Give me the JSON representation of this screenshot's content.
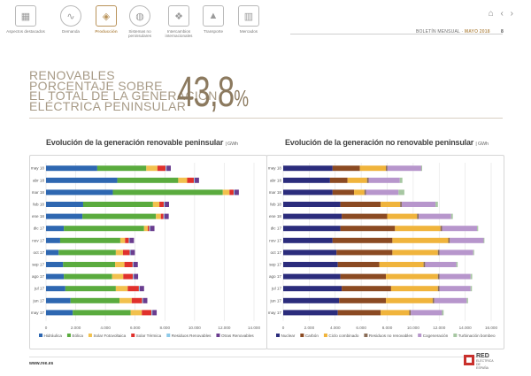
{
  "nav": {
    "items": [
      {
        "label": "Aspectos destacados",
        "icon": "highlights-icon",
        "active": false
      },
      {
        "label": "Demanda",
        "icon": "demand-icon",
        "active": false
      },
      {
        "label": "Producción",
        "icon": "production-icon",
        "active": true
      },
      {
        "label": "Sistemas no peninsulares",
        "icon": "islands-icon",
        "active": false
      },
      {
        "label": "Intercambios internacionales",
        "icon": "exchanges-icon",
        "active": false
      },
      {
        "label": "Transporte",
        "icon": "transport-icon",
        "active": false
      },
      {
        "label": "Mercados",
        "icon": "markets-icon",
        "active": false
      }
    ],
    "home_icon": "home-icon",
    "prev_icon": "chevron-left-icon",
    "next_icon": "chevron-right-icon"
  },
  "header": {
    "bulletin_label": "BOLETÍN MENSUAL",
    "separator": " · ",
    "period": "MAYO 2018",
    "page_number": "8"
  },
  "headline": {
    "line1": "RENOVABLES",
    "line2": "PORCENTAJE SOBRE",
    "line3": "EL TOTAL DE LA GENERACIÓN",
    "line4": "ELÉCTRICA PENINSULAR",
    "value": "43,8",
    "unit": "%"
  },
  "footer": {
    "url": "www.ree.es",
    "logo_line1": "RED",
    "logo_line2": "ELÉCTRICA",
    "logo_line3": "DE ESPAÑA"
  },
  "chart_data": [
    {
      "type": "bar",
      "stacked": true,
      "orientation": "horizontal",
      "title": "Evolución de la generación renovable peninsular",
      "unit": "GWh",
      "categories": [
        "may 18",
        "abr 18",
        "mar 18",
        "feb 18",
        "ene 18",
        "dic 17",
        "nov 17",
        "oct 17",
        "sep 17",
        "ago 17",
        "jul 17",
        "jun 17",
        "may 17"
      ],
      "xlim": [
        0,
        14000
      ],
      "xticks": [
        "0",
        "2.000",
        "4.000",
        "6.000",
        "8.000",
        "10.000",
        "12.000",
        "14.000"
      ],
      "series": [
        {
          "name": "Hidráulica",
          "color": "#2e67b1",
          "values": [
            3450,
            4800,
            4500,
            2500,
            2450,
            1200,
            950,
            850,
            1150,
            1200,
            1300,
            1650,
            1800
          ]
        },
        {
          "name": "Eólica",
          "color": "#5aab3e",
          "values": [
            3300,
            4100,
            7400,
            4700,
            4950,
            5400,
            4050,
            3850,
            3500,
            3250,
            3400,
            3300,
            3900
          ]
        },
        {
          "name": "Solar Fotovoltaica",
          "color": "#f2c14e",
          "values": [
            750,
            600,
            450,
            430,
            330,
            250,
            320,
            480,
            630,
            750,
            800,
            820,
            750
          ]
        },
        {
          "name": "Solar Térmica",
          "color": "#e0312c",
          "values": [
            550,
            450,
            280,
            300,
            180,
            100,
            250,
            450,
            550,
            650,
            750,
            700,
            650
          ]
        },
        {
          "name": "Residuos Renovables",
          "color": "#8dc9e8",
          "values": [
            60,
            60,
            60,
            60,
            60,
            60,
            60,
            60,
            60,
            60,
            60,
            60,
            60
          ]
        },
        {
          "name": "Otras Renovables",
          "color": "#6a3d8f",
          "values": [
            290,
            290,
            290,
            290,
            290,
            290,
            290,
            290,
            290,
            290,
            290,
            290,
            290
          ]
        }
      ]
    },
    {
      "type": "bar",
      "stacked": true,
      "orientation": "horizontal",
      "title": "Evolución de la generación no renovable peninsular",
      "unit": "GWh",
      "categories": [
        "may 18",
        "abr 18",
        "mar 18",
        "feb 18",
        "ene 18",
        "dic 17",
        "nov 17",
        "oct 17",
        "sep 17",
        "ago 17",
        "jul 17",
        "jun 17",
        "may 17"
      ],
      "xlim": [
        0,
        16000
      ],
      "xticks": [
        "0",
        "2.000",
        "4.000",
        "6.000",
        "8.000",
        "10.000",
        "12.000",
        "14.000",
        "16.000"
      ],
      "series": [
        {
          "name": "Nuclear",
          "color": "#2b2c7c",
          "values": [
            3800,
            3600,
            3800,
            4400,
            4500,
            4400,
            3800,
            4100,
            4200,
            4400,
            4500,
            4300,
            4200
          ]
        },
        {
          "name": "Carbón",
          "color": "#8b4a22",
          "values": [
            2100,
            1350,
            1650,
            3100,
            3500,
            4200,
            4600,
            4300,
            3200,
            3500,
            3800,
            3600,
            3300
          ]
        },
        {
          "name": "Ciclo combinado",
          "color": "#f0b43c",
          "values": [
            2000,
            1500,
            800,
            1500,
            2300,
            3500,
            4300,
            3500,
            3400,
            4000,
            3600,
            3600,
            2200
          ]
        },
        {
          "name": "Residuos no renovables",
          "color": "#8a6d57",
          "values": [
            120,
            120,
            120,
            120,
            120,
            120,
            120,
            120,
            120,
            120,
            120,
            120,
            120
          ]
        },
        {
          "name": "Cogeneración",
          "color": "#b796cc",
          "values": [
            2600,
            2400,
            2500,
            2600,
            2500,
            2700,
            2600,
            2600,
            2400,
            2400,
            2400,
            2500,
            2400
          ]
        },
        {
          "name": "Turbinación bombeo",
          "color": "#a7c7a2",
          "values": [
            70,
            200,
            450,
            180,
            130,
            80,
            60,
            70,
            100,
            120,
            100,
            100,
            120
          ]
        }
      ]
    }
  ]
}
